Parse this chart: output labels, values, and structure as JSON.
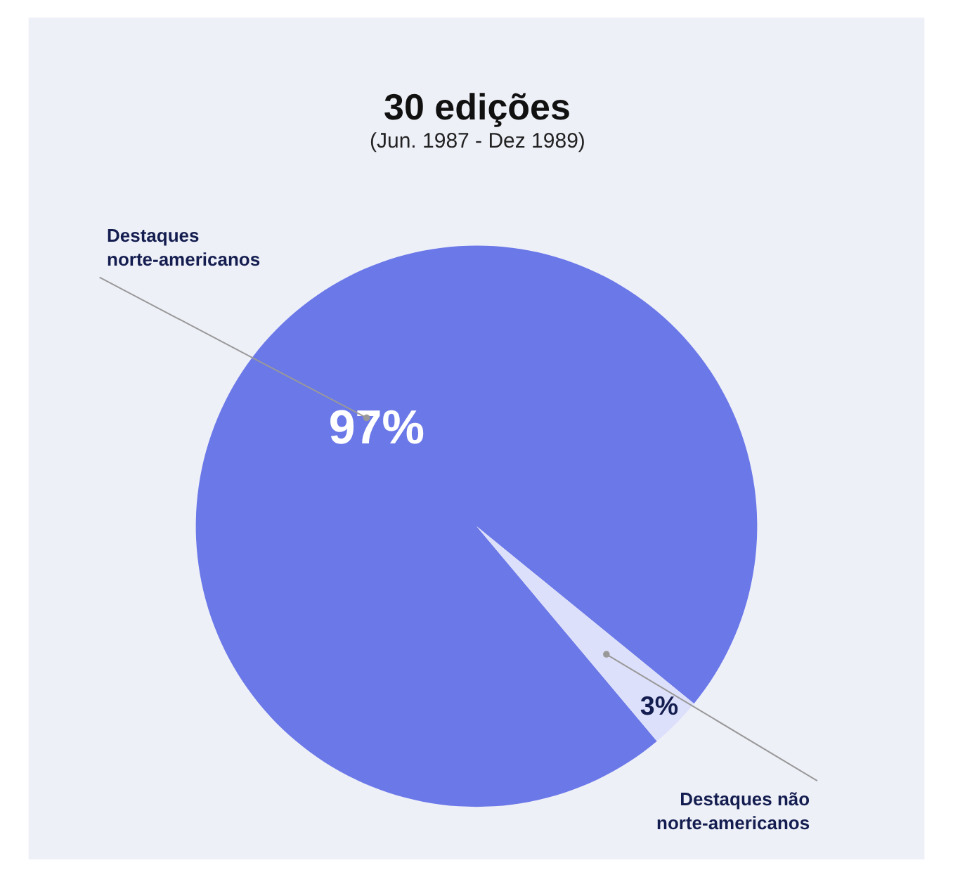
{
  "chart_data": {
    "type": "pie",
    "title": "30 edições",
    "subtitle": "(Jun. 1987 - Dez 1989)",
    "categories": [
      "Destaques norte-americanos",
      "Destaques não norte-americanos"
    ],
    "values": [
      97,
      3
    ],
    "colors": [
      "#6b78e8",
      "#dde0fa"
    ],
    "value_labels": [
      "97%",
      "3%"
    ],
    "legend": false
  }
}
